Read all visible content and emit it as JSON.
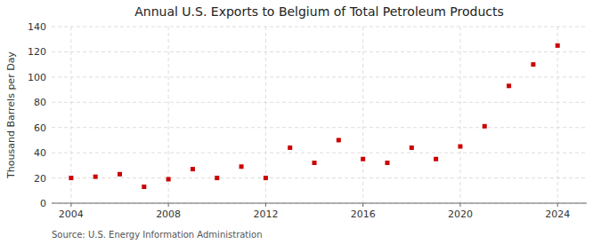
{
  "chart_data": {
    "type": "scatter",
    "title": "Annual U.S. Exports to Belgium of Total Petroleum Products",
    "ylabel": "Thousand Barrels per Day",
    "source": "Source: U.S. Energy Information Administration",
    "x": [
      2004,
      2005,
      2006,
      2007,
      2008,
      2009,
      2010,
      2011,
      2012,
      2013,
      2014,
      2015,
      2016,
      2017,
      2018,
      2019,
      2020,
      2021,
      2022,
      2023,
      2024
    ],
    "values": [
      20,
      21,
      23,
      13,
      19,
      27,
      20,
      29,
      20,
      44,
      32,
      50,
      35,
      32,
      44,
      35,
      45,
      61,
      93,
      110,
      125
    ],
    "color": "#cc0000",
    "marker": "square",
    "xlim": [
      2003.2,
      2025.2
    ],
    "ylim": [
      0,
      140
    ],
    "xticks": [
      2004,
      2008,
      2012,
      2016,
      2020,
      2024
    ],
    "yticks": [
      0,
      20,
      40,
      60,
      80,
      100,
      120,
      140
    ],
    "grid": true
  }
}
